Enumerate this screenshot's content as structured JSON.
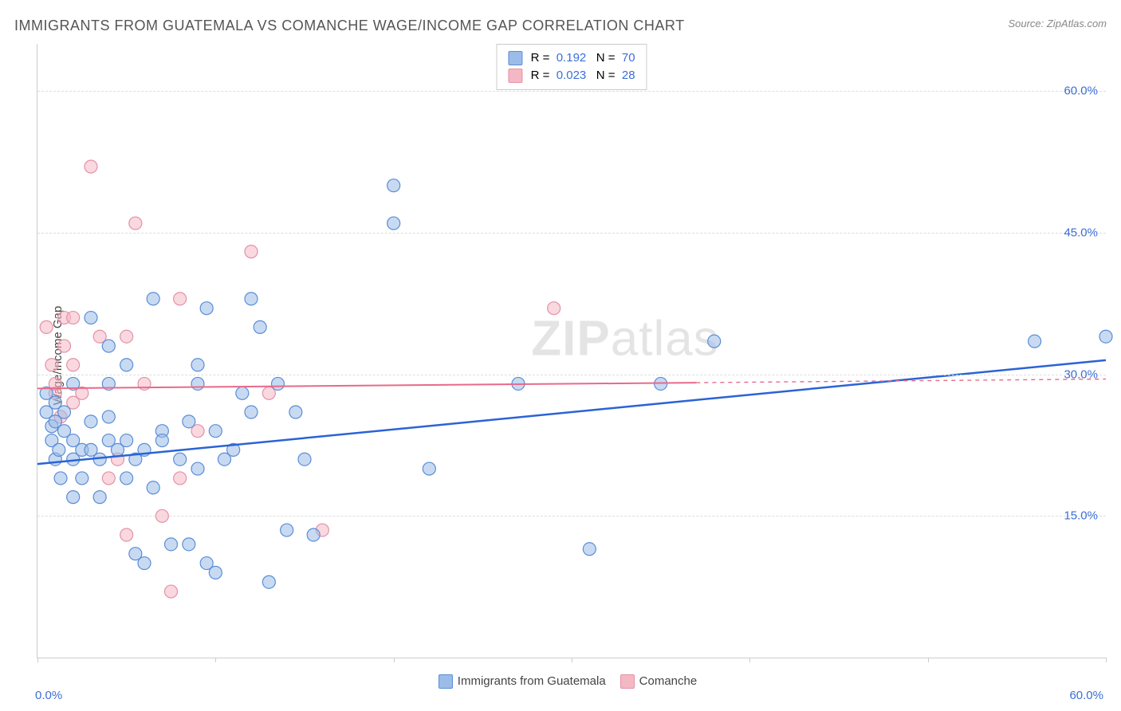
{
  "title": "IMMIGRANTS FROM GUATEMALA VS COMANCHE WAGE/INCOME GAP CORRELATION CHART",
  "source": "Source: ZipAtlas.com",
  "ylabel": "Wage/Income Gap",
  "watermark": "ZIPatlas",
  "chart": {
    "type": "scatter",
    "xlim": [
      0,
      60
    ],
    "ylim": [
      0,
      65
    ],
    "x_ticks": [
      0,
      10,
      20,
      30,
      40,
      50,
      60
    ],
    "x_tick_labels_shown": {
      "0": "0.0%",
      "60": "60.0%"
    },
    "y_gridlines": [
      15,
      30,
      45,
      60
    ],
    "y_tick_labels": {
      "15": "15.0%",
      "30": "30.0%",
      "45": "45.0%",
      "60": "60.0%"
    },
    "background": "#ffffff",
    "grid_color": "#dddddd",
    "axis_color": "#cccccc",
    "label_color": "#3b6fd6",
    "marker_radius": 8,
    "marker_opacity": 0.55,
    "series": [
      {
        "id": "guatemala",
        "label": "Immigrants from Guatemala",
        "color_fill": "#9bbce8",
        "color_stroke": "#5a8dd6",
        "R": "0.192",
        "N": "70",
        "trend": {
          "x1": 0,
          "y1": 20.5,
          "x2": 60,
          "y2": 31.5,
          "color": "#2b63d6",
          "width": 2.5,
          "dash_after_x": null
        },
        "points": [
          [
            0.5,
            28
          ],
          [
            0.5,
            26
          ],
          [
            0.8,
            24.5
          ],
          [
            0.8,
            23
          ],
          [
            1,
            27
          ],
          [
            1,
            21
          ],
          [
            1,
            25
          ],
          [
            1.2,
            22
          ],
          [
            1.3,
            19
          ],
          [
            1.5,
            26
          ],
          [
            1.5,
            24
          ],
          [
            2,
            23
          ],
          [
            2,
            17
          ],
          [
            2,
            21
          ],
          [
            2,
            29
          ],
          [
            2.5,
            19
          ],
          [
            2.5,
            22
          ],
          [
            3,
            36
          ],
          [
            3,
            22
          ],
          [
            3,
            25
          ],
          [
            3.5,
            21
          ],
          [
            3.5,
            17
          ],
          [
            4,
            25.5
          ],
          [
            4,
            23
          ],
          [
            4,
            29
          ],
          [
            4,
            33
          ],
          [
            4.5,
            22
          ],
          [
            5,
            23
          ],
          [
            5,
            19
          ],
          [
            5,
            31
          ],
          [
            5.5,
            21
          ],
          [
            5.5,
            11
          ],
          [
            6,
            22
          ],
          [
            6,
            10
          ],
          [
            6.5,
            18
          ],
          [
            6.5,
            38
          ],
          [
            7,
            24
          ],
          [
            7,
            23
          ],
          [
            7.5,
            12
          ],
          [
            8,
            21
          ],
          [
            8.5,
            25
          ],
          [
            8.5,
            12
          ],
          [
            9,
            29
          ],
          [
            9,
            20
          ],
          [
            9,
            31
          ],
          [
            9.5,
            37
          ],
          [
            9.5,
            10
          ],
          [
            10,
            9
          ],
          [
            10,
            24
          ],
          [
            10.5,
            21
          ],
          [
            11,
            22
          ],
          [
            11.5,
            28
          ],
          [
            12,
            38
          ],
          [
            12,
            26
          ],
          [
            12.5,
            35
          ],
          [
            13,
            8
          ],
          [
            13.5,
            29
          ],
          [
            14,
            13.5
          ],
          [
            14.5,
            26
          ],
          [
            15,
            21
          ],
          [
            15.5,
            13
          ],
          [
            20,
            50
          ],
          [
            20,
            46
          ],
          [
            22,
            20
          ],
          [
            27,
            29
          ],
          [
            31,
            11.5
          ],
          [
            35,
            29
          ],
          [
            38,
            33.5
          ],
          [
            56,
            33.5
          ],
          [
            60,
            34
          ]
        ]
      },
      {
        "id": "comanche",
        "label": "Comanche",
        "color_fill": "#f4b8c4",
        "color_stroke": "#e591a6",
        "R": "0.023",
        "N": "28",
        "trend": {
          "x1": 0,
          "y1": 28.5,
          "x2": 60,
          "y2": 29.5,
          "color": "#e86a8a",
          "width": 2,
          "dash_after_x": 37
        },
        "points": [
          [
            0.5,
            35
          ],
          [
            0.8,
            31
          ],
          [
            1,
            28
          ],
          [
            1,
            29
          ],
          [
            1.3,
            25.5
          ],
          [
            1.5,
            33
          ],
          [
            1.5,
            36
          ],
          [
            2,
            36
          ],
          [
            2,
            31
          ],
          [
            2,
            27
          ],
          [
            2.5,
            28
          ],
          [
            3,
            52
          ],
          [
            3.5,
            34
          ],
          [
            4,
            19
          ],
          [
            4.5,
            21
          ],
          [
            5,
            13
          ],
          [
            5,
            34
          ],
          [
            5.5,
            46
          ],
          [
            6,
            29
          ],
          [
            7,
            15
          ],
          [
            7.5,
            7
          ],
          [
            8,
            38
          ],
          [
            8,
            19
          ],
          [
            9,
            24
          ],
          [
            12,
            43
          ],
          [
            13,
            28
          ],
          [
            16,
            13.5
          ],
          [
            29,
            37
          ]
        ]
      }
    ]
  },
  "legend_bottom": [
    {
      "swatch_fill": "#9bbce8",
      "swatch_border": "#5a8dd6",
      "label": "Immigrants from Guatemala"
    },
    {
      "swatch_fill": "#f4b8c4",
      "swatch_border": "#e591a6",
      "label": "Comanche"
    }
  ]
}
